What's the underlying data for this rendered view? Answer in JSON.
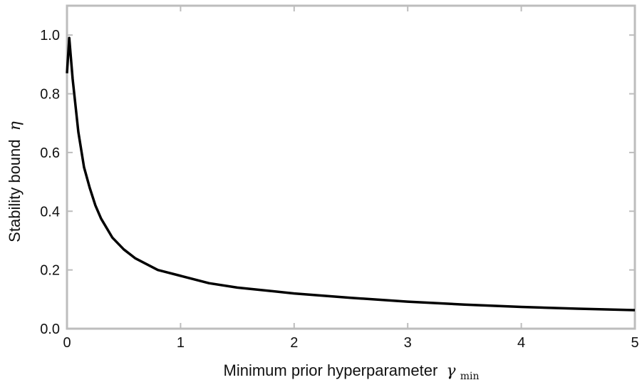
{
  "chart_data": {
    "type": "line",
    "xlabel": "Minimum prior hyperparameter",
    "xlabel_symbol": "γ",
    "xlabel_subscript": "min",
    "ylabel": "Stability bound",
    "ylabel_symbol": "η",
    "xlim": [
      0,
      5
    ],
    "ylim": [
      0,
      1.1
    ],
    "xticks": [
      "0",
      "1",
      "2",
      "3",
      "4",
      "5"
    ],
    "yticks": [
      "0.0",
      "0.2",
      "0.4",
      "0.6",
      "0.8",
      "1.0"
    ],
    "grid": false,
    "line_color": "#000000",
    "frame_color": "#bdbdbd",
    "series": [
      {
        "x": [
          0,
          0.02,
          0.05,
          0.1,
          0.15,
          0.2,
          0.25,
          0.3,
          0.4,
          0.5,
          0.6,
          0.8,
          1.0,
          1.25,
          1.5,
          2.0,
          2.5,
          3.0,
          3.5,
          4.0,
          4.5,
          5.0
        ],
        "y": [
          0.87,
          0.99,
          0.85,
          0.67,
          0.55,
          0.48,
          0.42,
          0.375,
          0.31,
          0.27,
          0.24,
          0.2,
          0.18,
          0.155,
          0.14,
          0.12,
          0.105,
          0.092,
          0.082,
          0.074,
          0.068,
          0.063
        ]
      }
    ]
  }
}
